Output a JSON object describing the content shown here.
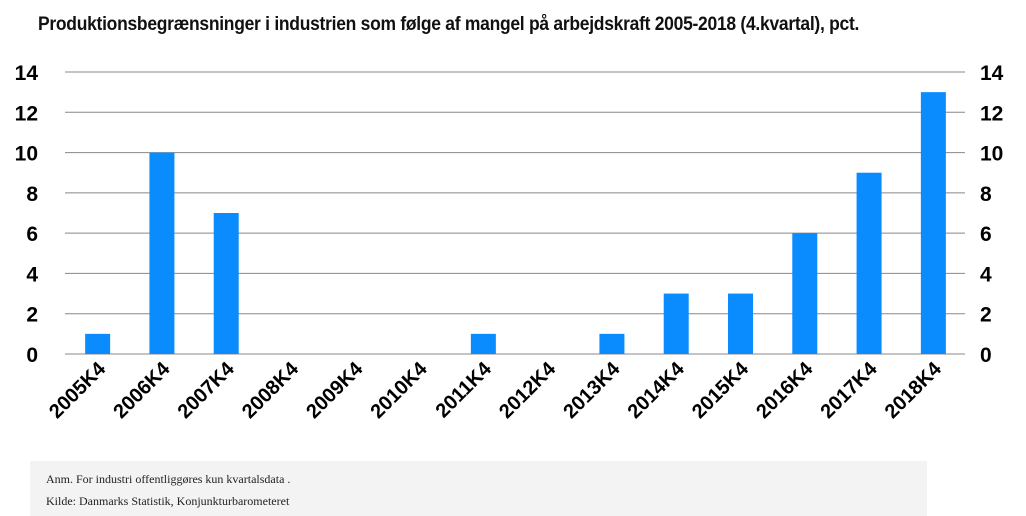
{
  "chart_data": {
    "type": "bar",
    "title": "Produktionsbegrænsninger i industrien som følge af mangel på arbejdskraft 2005-2018 (4.kvartal), pct.",
    "xlabel": "",
    "ylabel": "",
    "categories": [
      "2005K4",
      "2006K4",
      "2007K4",
      "2008K4",
      "2009K4",
      "2010K4",
      "2011K4",
      "2012K4",
      "2013K4",
      "2014K4",
      "2015K4",
      "2016K4",
      "2017K4",
      "2018K4"
    ],
    "values": [
      1,
      10,
      7,
      0,
      0,
      0,
      1,
      0,
      1,
      3,
      3,
      6,
      9,
      13
    ],
    "ylim": [
      0,
      14
    ],
    "yticks": [
      "0",
      "2",
      "4",
      "6",
      "8",
      "10",
      "12",
      "14"
    ],
    "grid": true,
    "bar_color": "#0a8cff",
    "grid_color": "#888888"
  },
  "notes": {
    "anm": "Anm. For industri offentliggøres kun kvartalsdata .",
    "kilde": "Kilde: Danmarks Statistik, Konjunkturbarometeret"
  }
}
